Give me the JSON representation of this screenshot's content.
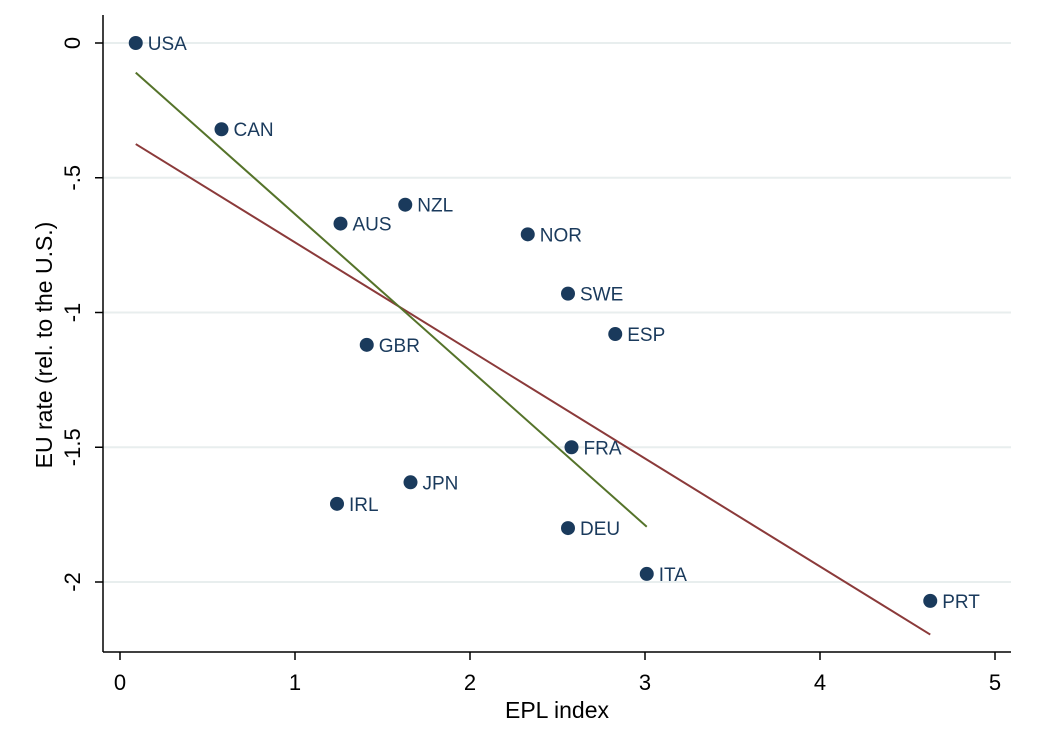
{
  "chart_data": {
    "type": "scatter",
    "xlabel": "EPL index",
    "ylabel": "EU rate (rel. to the U.S.)",
    "xlim": [
      0,
      5
    ],
    "ylim": [
      -2.5,
      0
    ],
    "x_ticks": [
      0,
      1,
      2,
      3,
      4,
      5
    ],
    "y_ticks": [
      0,
      -0.5,
      -1,
      -1.5,
      -2
    ],
    "x_tick_labels": [
      "0",
      "1",
      "2",
      "3",
      "4",
      "5"
    ],
    "y_tick_labels": [
      "0",
      "-.5",
      "-1",
      "-1.5",
      "-2"
    ],
    "grid": true,
    "points": [
      {
        "label": "USA",
        "x": 0.09,
        "y": 0.0
      },
      {
        "label": "CAN",
        "x": 0.58,
        "y": -0.32
      },
      {
        "label": "NZL",
        "x": 1.63,
        "y": -0.6
      },
      {
        "label": "AUS",
        "x": 1.26,
        "y": -0.67
      },
      {
        "label": "NOR",
        "x": 2.33,
        "y": -0.71
      },
      {
        "label": "SWE",
        "x": 2.56,
        "y": -0.93
      },
      {
        "label": "ESP",
        "x": 2.83,
        "y": -1.08
      },
      {
        "label": "GBR",
        "x": 1.41,
        "y": -1.12
      },
      {
        "label": "FRA",
        "x": 2.58,
        "y": -1.5
      },
      {
        "label": "JPN",
        "x": 1.66,
        "y": -1.63
      },
      {
        "label": "IRL",
        "x": 1.24,
        "y": -1.71
      },
      {
        "label": "DEU",
        "x": 2.56,
        "y": -1.8
      },
      {
        "label": "ITA",
        "x": 3.01,
        "y": -1.97
      },
      {
        "label": "PRT",
        "x": 4.63,
        "y": -2.07
      }
    ],
    "fit_lines": [
      {
        "x": [
          0.09,
          4.63
        ],
        "y": [
          -0.375,
          -2.195
        ],
        "color": "#8b3a3a"
      },
      {
        "x": [
          0.09,
          3.01
        ],
        "y": [
          -0.11,
          -1.795
        ],
        "color": "#55732a"
      }
    ],
    "colors": {
      "marker": "#1a3a5c",
      "label": "#1a3a5c",
      "grid": "#e8eeee",
      "axis": "#000000"
    }
  }
}
